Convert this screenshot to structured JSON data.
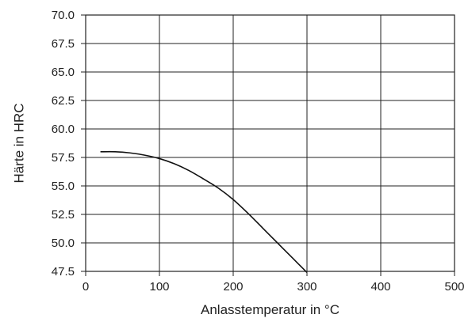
{
  "chart_data": {
    "type": "line",
    "xlabel": "Anlasstemperatur in °C",
    "ylabel": "Härte in HRC",
    "xlim": [
      0,
      500
    ],
    "ylim": [
      47.5,
      70.0
    ],
    "grid": true,
    "x_ticks": [
      0,
      100,
      200,
      300,
      400,
      500
    ],
    "x_tick_labels": [
      "0",
      "100",
      "200",
      "300",
      "400",
      "500"
    ],
    "y_ticks": [
      70.0,
      67.5,
      65.0,
      62.5,
      60.0,
      57.5,
      55.0,
      52.5,
      50.0,
      47.5
    ],
    "y_tick_labels": [
      "70.0",
      "67.5",
      "65.0",
      "62.5",
      "60.0",
      "57.5",
      "55.0",
      "52.5",
      "50.0",
      "47.5"
    ],
    "series": [
      {
        "x": [
          20,
          40,
          60,
          80,
          100,
          120,
          140,
          160,
          180,
          200,
          220,
          240,
          260,
          280,
          300
        ],
        "y": [
          58.0,
          58.0,
          57.9,
          57.7,
          57.4,
          56.95,
          56.35,
          55.6,
          54.8,
          53.8,
          52.6,
          51.3,
          50.0,
          48.7,
          47.4
        ]
      }
    ],
    "colors": {
      "line": "#111111",
      "grid": "#222222",
      "axis": "#222222"
    }
  }
}
